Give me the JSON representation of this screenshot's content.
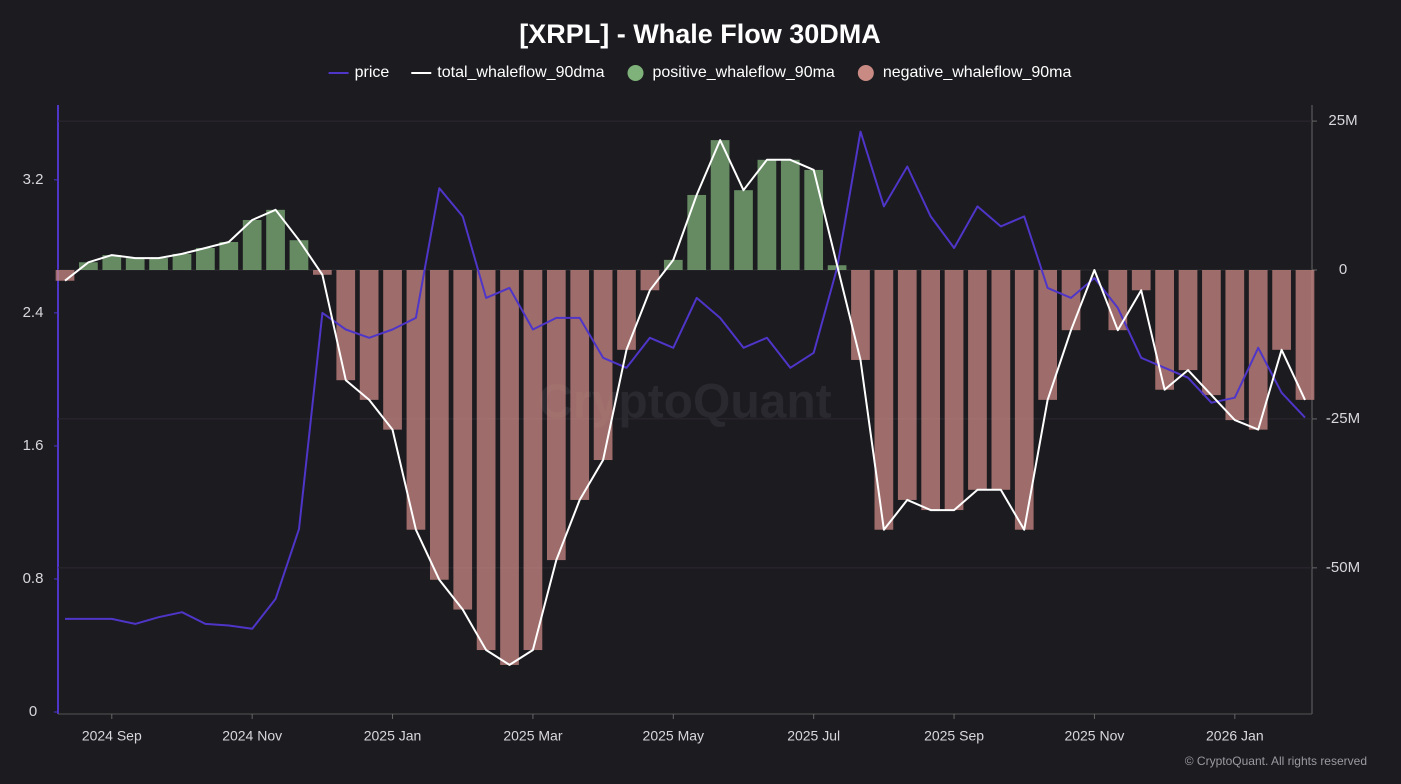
{
  "chart_data": {
    "type": "line-bar-dual",
    "title": "[XRPL] - Whale Flow 30DMA",
    "watermark": "CryptoQuant",
    "copyright": "© CryptoQuant. All rights reserved",
    "legend": "top",
    "categories": [
      null,
      null,
      "2024 Sep",
      null,
      null,
      null,
      null,
      null,
      "2024 Nov",
      null,
      null,
      null,
      null,
      null,
      "2025 Jan",
      null,
      null,
      null,
      null,
      null,
      "2025 Mar",
      null,
      null,
      null,
      null,
      null,
      "2025 May",
      null,
      null,
      null,
      null,
      null,
      "2025 Jul",
      null,
      null,
      null,
      null,
      null,
      "2025 Sep",
      null,
      null,
      null,
      null,
      null,
      "2025 Nov",
      null,
      null,
      null,
      null,
      null,
      "2026 Jan",
      null,
      null,
      null
    ],
    "ylim": [
      0,
      3.65
    ],
    "yticks": [
      0,
      0.8,
      1.6,
      2.4,
      3.2
    ],
    "y2lim": [
      -74200000,
      27700000
    ],
    "y2ticks": [
      {
        "value": -50000000,
        "label": "-50M"
      },
      {
        "value": -25000000,
        "label": "-25M"
      },
      0,
      {
        "value": 25000000,
        "label": "25M"
      }
    ],
    "grid": true,
    "series": [
      {
        "name": "price",
        "kind": "line",
        "color": "#4f35c8",
        "values": [
          0.56,
          0.56,
          0.56,
          0.53,
          0.57,
          0.6,
          0.53,
          0.52,
          0.5,
          0.68,
          1.1,
          2.4,
          2.3,
          2.25,
          2.3,
          2.37,
          3.15,
          2.98,
          2.49,
          2.55,
          2.3,
          2.37,
          2.37,
          2.13,
          2.07,
          2.25,
          2.19,
          2.49,
          2.37,
          2.19,
          2.25,
          2.07,
          2.16,
          2.67,
          3.49,
          3.04,
          3.28,
          2.98,
          2.79,
          3.04,
          2.92,
          2.98,
          2.55,
          2.49,
          2.61,
          2.43,
          2.13,
          2.07,
          2.01,
          1.86,
          1.89,
          2.19,
          1.92,
          1.77
        ]
      },
      {
        "name": "total_whaleflow_90dma",
        "kind": "line",
        "axis": "y2",
        "color": "#ffffff",
        "values": [
          -1800000,
          1300000,
          2500000,
          2000000,
          2000000,
          2700000,
          3700000,
          4700000,
          8400000,
          10100000,
          5000000,
          -800000,
          -18500000,
          -21800000,
          -26800000,
          -43600000,
          -52000000,
          -57000000,
          -63800000,
          -66300000,
          -63800000,
          -48700000,
          -38600000,
          -31900000,
          -13400000,
          -3400000,
          1700000,
          12600000,
          21800000,
          13400000,
          18500000,
          18500000,
          16800000,
          800000,
          -15100000,
          -43600000,
          -38600000,
          -40300000,
          -40300000,
          -36900000,
          -36900000,
          -43600000,
          -21800000,
          -10100000,
          0,
          -10100000,
          -3400000,
          -20100000,
          -16800000,
          -21000000,
          -25200000,
          -26800000,
          -13400000,
          -21800000
        ]
      },
      {
        "name": "positive_whaleflow_90ma",
        "kind": "bar",
        "axis": "y2",
        "color": "#7fb27a",
        "values": [
          null,
          1300000,
          2500000,
          2000000,
          2000000,
          2700000,
          3700000,
          4700000,
          8400000,
          10100000,
          5000000,
          null,
          null,
          null,
          null,
          null,
          null,
          null,
          null,
          null,
          null,
          null,
          null,
          null,
          null,
          null,
          1700000,
          12600000,
          21800000,
          13400000,
          18500000,
          18500000,
          16800000,
          800000,
          null,
          null,
          null,
          null,
          null,
          null,
          null,
          null,
          null,
          null,
          null,
          null,
          null,
          null,
          null,
          null,
          null,
          null,
          null,
          null
        ]
      },
      {
        "name": "negative_whaleflow_90ma",
        "kind": "bar",
        "axis": "y2",
        "color": "#c98a84",
        "values": [
          -1800000,
          null,
          null,
          null,
          null,
          null,
          null,
          null,
          null,
          null,
          null,
          -800000,
          -18500000,
          -21800000,
          -26800000,
          -43600000,
          -52000000,
          -57000000,
          -63800000,
          -66300000,
          -63800000,
          -48700000,
          -38600000,
          -31900000,
          -13400000,
          -3400000,
          null,
          null,
          null,
          null,
          null,
          null,
          null,
          null,
          -15100000,
          -43600000,
          -38600000,
          -40300000,
          -40300000,
          -36900000,
          -36900000,
          -43600000,
          -21800000,
          -10100000,
          null,
          -10100000,
          -3400000,
          -20100000,
          -16800000,
          -21000000,
          -25200000,
          -26800000,
          -13400000,
          -21800000
        ]
      }
    ]
  }
}
